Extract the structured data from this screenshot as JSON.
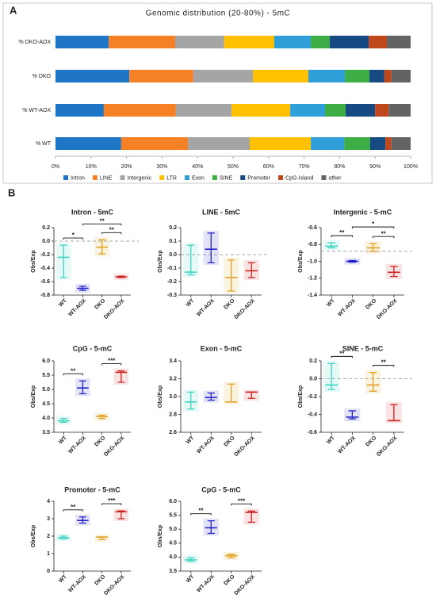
{
  "chart_data": [
    {
      "type": "bar",
      "orientation": "horizontal",
      "stacked": true,
      "panel": "A",
      "title": "Genomic distribution (20-80%) - 5mC",
      "categories": [
        "% DKO-AOX",
        "% DKO",
        "% WT-AOX",
        "% WT"
      ],
      "series": [
        {
          "name": "Intron",
          "color": "#1f76c6",
          "values": [
            15,
            20.8,
            13.6,
            18.5
          ]
        },
        {
          "name": "LINE",
          "color": "#f58025",
          "values": [
            18.7,
            18,
            20.3,
            18.8
          ]
        },
        {
          "name": "Intergenic",
          "color": "#a5a5a5",
          "values": [
            13.8,
            16.8,
            15.7,
            17.4
          ]
        },
        {
          "name": "LTR",
          "color": "#ffc000",
          "values": [
            14.1,
            15.6,
            16.5,
            17.2
          ]
        },
        {
          "name": "Exon",
          "color": "#2e9fd8",
          "values": [
            10.3,
            10.3,
            9.8,
            9.4
          ]
        },
        {
          "name": "SINE",
          "color": "#3cae45",
          "values": [
            5.3,
            6.9,
            5.8,
            7.3
          ]
        },
        {
          "name": "Promoter",
          "color": "#164a83",
          "values": [
            11,
            4.2,
            8.3,
            4.3
          ]
        },
        {
          "name": "CpG-Island",
          "color": "#c0461b",
          "values": [
            5.1,
            2,
            3.8,
            1.7
          ]
        },
        {
          "name": "other",
          "color": "#636363",
          "values": [
            6.7,
            5.4,
            6.2,
            5.4
          ]
        }
      ],
      "xlim": [
        0,
        100
      ],
      "xticks": [
        {
          "value": 0,
          "label": "0%"
        },
        {
          "value": 10,
          "label": "10%"
        },
        {
          "value": 20,
          "label": "20%"
        },
        {
          "value": 30,
          "label": "30%"
        },
        {
          "value": 40,
          "label": "40%"
        },
        {
          "value": 50,
          "label": "50%"
        },
        {
          "value": 60,
          "label": "60%"
        },
        {
          "value": 70,
          "label": "70%"
        },
        {
          "value": 80,
          "label": "80%"
        },
        {
          "value": 90,
          "label": "90%"
        },
        {
          "value": 100,
          "label": "100%"
        }
      ],
      "legend": "bottom"
    },
    {
      "type": "errorbar",
      "panel": "B",
      "title": "Intron - 5mC",
      "ylabel": "Obs/Exp",
      "categories": [
        "WT",
        "WT-AOX",
        "DKO",
        "DKO-AOX"
      ],
      "colors": [
        "#3fd3c0",
        "#2323c8",
        "#e0a020",
        "#cc2222"
      ],
      "values": [
        -0.24,
        -0.7,
        -0.09,
        -0.53
      ],
      "lower": [
        -0.54,
        -0.73,
        -0.19,
        -0.54
      ],
      "upper": [
        -0.06,
        -0.67,
        0.02,
        -0.52
      ],
      "ylim": [
        -0.8,
        0.2
      ],
      "yticks": [
        -0.8,
        -0.6,
        -0.4,
        -0.2,
        {
          "value": 0,
          "label": "0.0"
        },
        0.2
      ],
      "reference_line": 0,
      "brackets": [
        {
          "groups": [
            "WT",
            "WT-AOX"
          ],
          "label": "*"
        },
        {
          "groups": [
            "DKO",
            "DKO-AOX"
          ],
          "label": "**"
        },
        {
          "groups": [
            "WT-AOX",
            "DKO-AOX"
          ],
          "label": "**"
        }
      ]
    },
    {
      "type": "errorbar",
      "title": "LINE - 5mC",
      "ylabel": "Obs/Exp",
      "categories": [
        "WT",
        "WT-AOX",
        "DKO",
        "DKO-AOX"
      ],
      "colors": [
        "#3fd3c0",
        "#2323c8",
        "#e0a020",
        "#cc2222"
      ],
      "values": [
        -0.13,
        0.04,
        -0.17,
        -0.12
      ],
      "lower": [
        -0.15,
        -0.06,
        -0.27,
        -0.17
      ],
      "upper": [
        0.07,
        0.16,
        -0.04,
        -0.06
      ],
      "ylim": [
        -0.3,
        0.2
      ],
      "yticks": [
        -0.3,
        -0.2,
        -0.1,
        {
          "value": 0,
          "label": "0.0"
        },
        0.1,
        0.2
      ],
      "reference_line": 0,
      "brackets": []
    },
    {
      "type": "errorbar",
      "title": "Intergenic - 5-mC",
      "ylabel": "Obs/Exp",
      "categories": [
        "WT",
        "WT-AOX",
        "DKO",
        "DKO-AOX"
      ],
      "colors": [
        "#3fd3c0",
        "#2323c8",
        "#e0a020",
        "#cc2222"
      ],
      "values": [
        -0.82,
        -1,
        -0.84,
        -1.13
      ],
      "lower": [
        -0.84,
        -1.01,
        -0.88,
        -1.18
      ],
      "upper": [
        -0.78,
        -0.99,
        -0.79,
        -1.06
      ],
      "ylim": [
        -1.4,
        -0.6
      ],
      "yticks": [
        -1.4,
        -1.2,
        {
          "value": -1,
          "label": "-1.0"
        },
        -0.8,
        -0.6
      ],
      "reference_line": -0.88,
      "brackets": [
        {
          "groups": [
            "WT",
            "WT-AOX"
          ],
          "label": "**"
        },
        {
          "groups": [
            "DKO",
            "DKO-AOX"
          ],
          "label": "**"
        },
        {
          "groups": [
            "WT-AOX",
            "DKO-AOX"
          ],
          "label": "*"
        }
      ]
    },
    {
      "type": "errorbar",
      "title": "CpG - 5-mC",
      "ylabel": "Obs/Exp",
      "categories": [
        "WT",
        "WT-AOX",
        "DKO",
        "DKO-AOX"
      ],
      "colors": [
        "#3fd3c0",
        "#2323c8",
        "#e0a020",
        "#cc2222"
      ],
      "values": [
        3.9,
        5.05,
        4.05,
        5.6
      ],
      "lower": [
        3.85,
        4.85,
        3.98,
        5.25
      ],
      "upper": [
        3.98,
        5.3,
        4.1,
        5.65
      ],
      "ylim": [
        3.5,
        6
      ],
      "yticks": [
        3.5,
        {
          "value": 4,
          "label": "4.0"
        },
        4.5,
        {
          "value": 5,
          "label": "5.0"
        },
        5.5,
        {
          "value": 6,
          "label": "6.0"
        }
      ],
      "brackets": [
        {
          "groups": [
            "WT",
            "WT-AOX"
          ],
          "label": "**"
        },
        {
          "groups": [
            "DKO",
            "DKO-AOX"
          ],
          "label": "***"
        }
      ]
    },
    {
      "type": "errorbar",
      "title": "Exon - 5-mC",
      "ylabel": "Obs/Exp",
      "categories": [
        "WT",
        "WT-AOX",
        "DKO",
        "DKO-AOX"
      ],
      "colors": [
        "#3fd3c0",
        "#2323c8",
        "#e0a020",
        "#cc2222"
      ],
      "values": [
        2.94,
        2.99,
        2.94,
        3.05
      ],
      "lower": [
        2.86,
        2.96,
        2.94,
        2.98
      ],
      "upper": [
        3.05,
        3.04,
        3.14,
        3.05
      ],
      "ylim": [
        2.6,
        3.4
      ],
      "yticks": [
        2.6,
        2.8,
        {
          "value": 3,
          "label": "3.0"
        },
        3.2,
        3.4
      ],
      "brackets": []
    },
    {
      "type": "errorbar",
      "title": "SINE - 5-mC",
      "ylabel": "Obs/Exp",
      "categories": [
        "WT",
        "WT-AOX",
        "DKO",
        "DKO-AOX"
      ],
      "colors": [
        "#3fd3c0",
        "#2323c8",
        "#e0a020",
        "#cc2222"
      ],
      "values": [
        -0.07,
        -0.43,
        -0.07,
        -0.47
      ],
      "lower": [
        -0.12,
        -0.45,
        -0.14,
        -0.47
      ],
      "upper": [
        0.17,
        -0.36,
        0.07,
        -0.29
      ],
      "ylim": [
        -0.6,
        0.2
      ],
      "yticks": [
        -0.6,
        -0.4,
        -0.2,
        {
          "value": 0,
          "label": "0.0"
        },
        0.2
      ],
      "reference_line": 0,
      "brackets": [
        {
          "groups": [
            "WT",
            "WT-AOX"
          ],
          "label": "**"
        },
        {
          "groups": [
            "DKO",
            "DKO-AOX"
          ],
          "label": "**"
        }
      ]
    },
    {
      "type": "errorbar",
      "title": "Promoter - 5-mC",
      "ylabel": "Obs/Exp",
      "categories": [
        "WT",
        "WT-AOX",
        "DKO",
        "DKO-AOX"
      ],
      "colors": [
        "#3fd3c0",
        "#2323c8",
        "#e0a020",
        "#cc2222"
      ],
      "values": [
        1.9,
        2.9,
        1.95,
        3.4
      ],
      "lower": [
        1.85,
        2.75,
        1.8,
        3
      ],
      "upper": [
        2,
        3.1,
        1.95,
        3.45
      ],
      "ylim": [
        0,
        4
      ],
      "yticks": [
        0,
        1,
        2,
        3,
        4
      ],
      "brackets": [
        {
          "groups": [
            "WT",
            "WT-AOX"
          ],
          "label": "**"
        },
        {
          "groups": [
            "DKO",
            "DKO-AOX"
          ],
          "label": "***"
        }
      ]
    },
    {
      "type": "errorbar",
      "title": "CpG - 5-mC",
      "ylabel": "Obs/Exp",
      "categories": [
        "WT",
        "WT-AOX",
        "DKO",
        "DKO-AOX"
      ],
      "colors": [
        "#3fd3c0",
        "#2323c8",
        "#e0a020",
        "#cc2222"
      ],
      "values": [
        3.9,
        5.05,
        4.05,
        5.6
      ],
      "lower": [
        3.85,
        4.85,
        3.98,
        5.25
      ],
      "upper": [
        3.98,
        5.3,
        4.1,
        5.65
      ],
      "ylim": [
        3.5,
        6
      ],
      "yticks": [
        3.5,
        {
          "value": 4,
          "label": "4.0"
        },
        4.5,
        {
          "value": 5,
          "label": "5.0"
        },
        5.5,
        {
          "value": 6,
          "label": "6.0"
        }
      ],
      "brackets": [
        {
          "groups": [
            "WT",
            "WT-AOX"
          ],
          "label": "**"
        },
        {
          "groups": [
            "DKO",
            "DKO-AOX"
          ],
          "label": "***"
        }
      ]
    }
  ]
}
